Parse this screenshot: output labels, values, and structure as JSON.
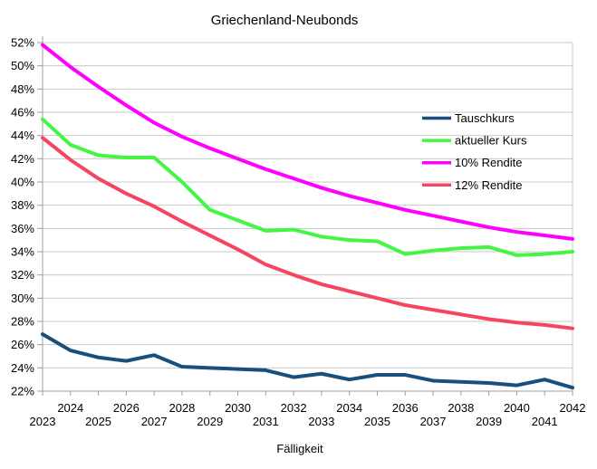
{
  "chart_data": {
    "type": "line",
    "title": "Griechenland-Neubonds",
    "xlabel": "Fälligkeit",
    "ylabel": "",
    "grid": "horizontal",
    "legend_position": "inside-right",
    "ylim": [
      22,
      52
    ],
    "ytick_values": [
      22,
      24,
      26,
      28,
      30,
      32,
      34,
      36,
      38,
      40,
      42,
      44,
      46,
      48,
      50,
      52
    ],
    "ytick_labels": [
      "22%",
      "24%",
      "26%",
      "28%",
      "30%",
      "32%",
      "34%",
      "36%",
      "38%",
      "40%",
      "42%",
      "44%",
      "46%",
      "48%",
      "50%",
      "52%"
    ],
    "x": [
      2023,
      2024,
      2025,
      2026,
      2027,
      2028,
      2029,
      2030,
      2031,
      2032,
      2033,
      2034,
      2035,
      2036,
      2037,
      2038,
      2039,
      2040,
      2041,
      2042
    ],
    "x_labels": [
      "2023",
      "2024",
      "2025",
      "2026",
      "2027",
      "2028",
      "2029",
      "2030",
      "2031",
      "2032",
      "2033",
      "2034",
      "2035",
      "2036",
      "2037",
      "2038",
      "2039",
      "2040",
      "2041",
      "2042"
    ],
    "series": [
      {
        "name": "Tauschkurs",
        "color": "#184F7D",
        "values": [
          26.9,
          25.5,
          24.9,
          24.6,
          25.1,
          24.1,
          24.0,
          23.9,
          23.8,
          23.2,
          23.5,
          23.0,
          23.4,
          23.4,
          22.9,
          22.8,
          22.7,
          22.5,
          23.0,
          22.3
        ]
      },
      {
        "name": "aktueller Kurs",
        "color": "#44F544",
        "values": [
          45.4,
          43.2,
          42.3,
          42.1,
          42.1,
          40.0,
          37.6,
          36.7,
          35.8,
          35.9,
          35.3,
          35.0,
          34.9,
          33.8,
          34.1,
          34.3,
          34.4,
          33.7,
          33.8,
          34.0
        ]
      },
      {
        "name": "10% Rendite",
        "color": "#FF00FF",
        "values": [
          51.8,
          49.9,
          48.2,
          46.6,
          45.1,
          43.9,
          42.9,
          42.0,
          41.1,
          40.3,
          39.5,
          38.8,
          38.2,
          37.6,
          37.1,
          36.6,
          36.1,
          35.7,
          35.4,
          35.1
        ]
      },
      {
        "name": "12% Rendite",
        "color": "#F54560",
        "values": [
          43.8,
          41.9,
          40.3,
          39.0,
          37.9,
          36.6,
          35.4,
          34.2,
          32.9,
          32.0,
          31.2,
          30.6,
          30.0,
          29.4,
          29.0,
          28.6,
          28.2,
          27.9,
          27.7,
          27.4
        ]
      }
    ],
    "colors": {
      "gridline": "#c9c9c9",
      "axis": "#9d9d9d",
      "plot_border": "#c9c9c9",
      "background": "#ffffff"
    }
  }
}
